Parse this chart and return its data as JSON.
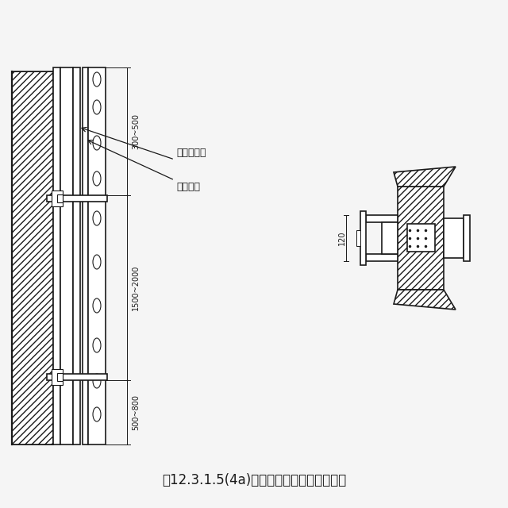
{
  "title": "图12.3.1.5(4a)工字钢立柱用预制砌块侧装",
  "label1": "工字钢立柱",
  "label2": "预制砌块",
  "dim1": "300~500",
  "dim2": "1500~2000",
  "dim3": "500~800",
  "dim4": "120",
  "bg_color": "#f5f5f5",
  "line_color": "#1a1a1a",
  "title_fontsize": 12,
  "figsize": [
    6.4,
    6.4
  ],
  "dpi": 100
}
